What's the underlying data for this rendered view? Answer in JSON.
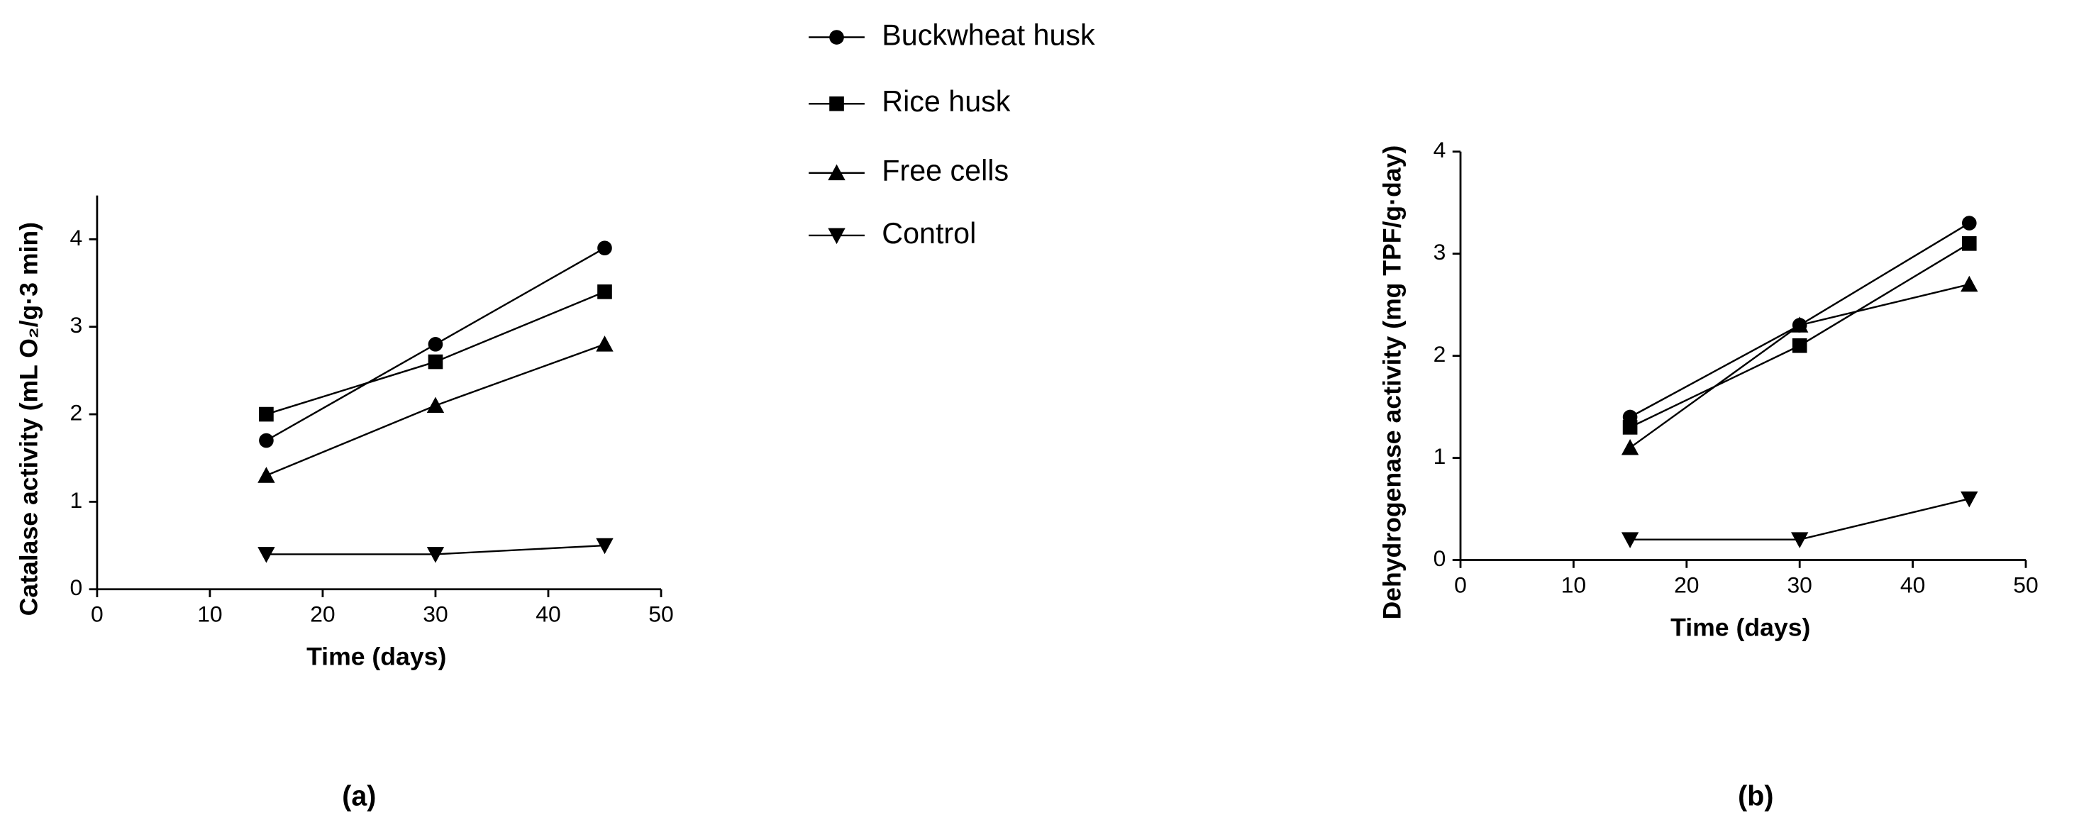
{
  "chart_data": [
    {
      "type": "line",
      "x_label": "Time (days)",
      "y_label": "Catalase activity (mL O₂/g·3 min)",
      "panel_label": "(a)",
      "x": [
        15,
        30,
        45
      ],
      "xlim": [
        0,
        50
      ],
      "xticks": [
        0,
        10,
        20,
        30,
        40,
        50
      ],
      "ylim": [
        0,
        4.5
      ],
      "yticks": [
        0,
        1,
        2,
        3,
        4
      ],
      "series": [
        {
          "name": "Buckwheat husk",
          "color": "#000000",
          "marker": "circle",
          "values": [
            1.7,
            2.8,
            3.9
          ]
        },
        {
          "name": "Rice husk",
          "color": "#000000",
          "marker": "square",
          "values": [
            2.0,
            2.6,
            3.4
          ]
        },
        {
          "name": "Free cells",
          "color": "#000000",
          "marker": "triangle",
          "values": [
            1.3,
            2.1,
            2.8
          ]
        },
        {
          "name": "Control",
          "color": "#000000",
          "marker": "triangle-down",
          "values": [
            0.4,
            0.4,
            0.5
          ]
        }
      ]
    },
    {
      "type": "line",
      "x_label": "Time (days)",
      "y_label": "Dehydrogenase activity (mg TPF/g·day)",
      "panel_label": "(b)",
      "x": [
        15,
        30,
        45
      ],
      "xlim": [
        0,
        50
      ],
      "xticks": [
        0,
        10,
        20,
        30,
        40,
        50
      ],
      "ylim": [
        0,
        4
      ],
      "yticks": [
        0,
        1,
        2,
        3,
        4
      ],
      "series": [
        {
          "color": "#000000",
          "marker": "circle",
          "values": [
            1.4,
            2.3,
            3.3
          ]
        },
        {
          "color": "#000000",
          "marker": "square",
          "values": [
            1.3,
            2.1,
            3.1
          ]
        },
        {
          "color": "#000000",
          "marker": "triangle",
          "values": [
            1.1,
            2.3,
            2.7
          ]
        },
        {
          "color": "#000000",
          "marker": "triangle-down",
          "values": [
            0.2,
            0.2,
            0.6
          ]
        }
      ]
    }
  ]
}
